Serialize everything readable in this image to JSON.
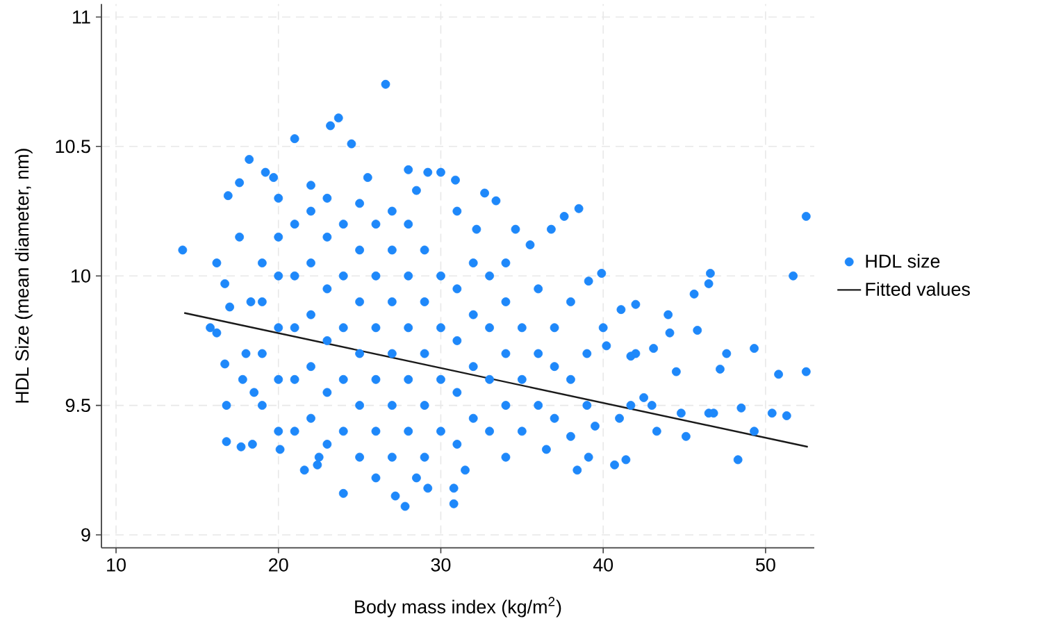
{
  "chart_data": {
    "type": "scatter",
    "xlabel": "Body mass index (kg/m$^{2}$)",
    "ylabel": "HDL Size (mean diameter, nm)",
    "xlim": [
      9.1,
      53
    ],
    "ylim": [
      8.95,
      11.05
    ],
    "xticks": [
      10,
      20,
      30,
      40,
      50
    ],
    "yticks": [
      9,
      9.5,
      10,
      10.5,
      11
    ],
    "grid": true,
    "legend": "right",
    "series": [
      {
        "name": "HDL size",
        "color": "#1e88fa",
        "marker": "circle",
        "x": [
          26.6,
          23.7,
          23.2,
          21.0,
          24.5,
          18.2,
          14.1,
          16.2,
          15.8,
          16.2,
          16.8,
          17.7,
          18.4,
          24.0,
          27.8,
          27.2,
          21.6,
          16.8,
          16.7,
          16.9,
          17.6,
          19.2,
          19.7,
          16.7,
          17.0,
          20.1,
          22.4,
          28.0,
          29.2,
          30.0,
          30.9,
          32.7,
          33.4,
          38.5,
          37.6,
          39.9,
          46.6,
          46.5,
          45.6,
          52.5,
          51.7,
          52.5,
          50.8,
          49.3,
          47.6,
          50.4,
          51.3,
          48.3,
          49.3,
          45.1,
          43.3,
          40.7,
          41.4,
          38.4,
          30.8,
          29.2,
          30.8,
          44.0,
          44.1,
          45.8,
          47.2,
          48.5,
          46.5,
          46.8,
          42.0,
          41.1,
          40.2,
          43.1,
          39.1,
          36.8,
          34.6,
          35.5,
          32.2,
          44.5,
          44.8,
          42.5,
          41.7,
          41.7,
          39.5,
          39.1,
          18.3,
          18.0,
          18.5,
          17.6,
          17.8,
          20,
          22,
          25.5,
          28.5,
          31,
          34,
          36,
          38,
          40,
          42,
          20,
          22.5,
          26,
          28.5,
          31.5,
          34,
          36.5,
          38,
          41,
          43,
          19,
          19,
          19,
          19,
          21,
          21,
          21,
          21,
          21,
          23,
          23,
          23,
          23,
          23,
          23,
          25,
          25,
          25,
          25,
          25,
          25,
          27,
          27,
          27,
          27,
          27,
          27,
          29,
          29,
          29,
          29,
          29,
          31,
          31,
          31,
          31,
          33,
          33,
          33,
          33,
          35,
          35,
          35,
          37,
          37,
          37,
          39,
          39,
          20,
          20,
          20,
          20,
          22,
          22,
          22,
          22,
          22,
          24,
          24,
          24,
          24,
          24,
          26,
          26,
          26,
          26,
          26,
          28,
          28,
          28,
          28,
          28,
          30,
          30,
          30,
          30,
          32,
          32,
          32,
          32,
          34,
          34,
          34,
          36,
          36,
          38
        ],
        "values": [
          10.74,
          10.61,
          10.58,
          10.53,
          10.51,
          10.45,
          10.1,
          10.05,
          9.8,
          9.78,
          9.36,
          9.34,
          9.35,
          9.16,
          9.11,
          9.15,
          9.25,
          9.5,
          9.66,
          10.31,
          10.36,
          10.4,
          10.38,
          9.97,
          9.88,
          9.33,
          9.27,
          10.41,
          10.4,
          10.4,
          10.37,
          10.32,
          10.29,
          10.26,
          10.23,
          10.01,
          10.01,
          9.97,
          9.93,
          10.23,
          10.0,
          9.63,
          9.62,
          9.72,
          9.7,
          9.47,
          9.46,
          9.29,
          9.4,
          9.38,
          9.4,
          9.27,
          9.29,
          9.25,
          9.12,
          9.18,
          9.18,
          9.85,
          9.78,
          9.79,
          9.64,
          9.49,
          9.47,
          9.47,
          9.89,
          9.87,
          9.73,
          9.72,
          9.98,
          10.18,
          10.18,
          10.12,
          10.18,
          9.63,
          9.47,
          9.53,
          9.5,
          9.69,
          9.42,
          9.3,
          9.9,
          9.7,
          9.55,
          10.15,
          9.6,
          10.3,
          10.35,
          10.38,
          10.33,
          10.25,
          10.05,
          9.95,
          9.9,
          9.8,
          9.7,
          9.4,
          9.3,
          9.22,
          9.22,
          9.25,
          9.3,
          9.33,
          9.38,
          9.45,
          9.5,
          9.5,
          9.7,
          9.9,
          10.05,
          9.4,
          9.6,
          9.8,
          10.0,
          10.2,
          9.35,
          9.55,
          9.75,
          9.95,
          10.15,
          10.3,
          9.3,
          9.5,
          9.7,
          9.9,
          10.1,
          10.28,
          9.3,
          9.5,
          9.7,
          9.9,
          10.1,
          10.25,
          9.3,
          9.5,
          9.7,
          9.9,
          10.1,
          9.35,
          9.55,
          9.75,
          9.95,
          9.4,
          9.6,
          9.8,
          10.0,
          9.4,
          9.6,
          9.8,
          9.45,
          9.65,
          9.8,
          9.5,
          9.7,
          9.6,
          9.8,
          10.0,
          10.15,
          9.45,
          9.65,
          9.85,
          10.05,
          10.25,
          9.4,
          9.6,
          9.8,
          10.0,
          10.2,
          9.4,
          9.6,
          9.8,
          10.0,
          10.2,
          9.4,
          9.6,
          9.8,
          10.0,
          10.2,
          9.4,
          9.6,
          9.8,
          10.0,
          9.45,
          9.65,
          9.85,
          10.05,
          9.5,
          9.7,
          9.9,
          9.5,
          9.7,
          9.6
        ]
      },
      {
        "name": "Fitted values",
        "type": "line",
        "color": "#1a1a1a",
        "marker": "none",
        "line_style": "solid",
        "x": [
          14.2,
          52.6
        ],
        "values": [
          9.857,
          9.34
        ]
      }
    ]
  }
}
